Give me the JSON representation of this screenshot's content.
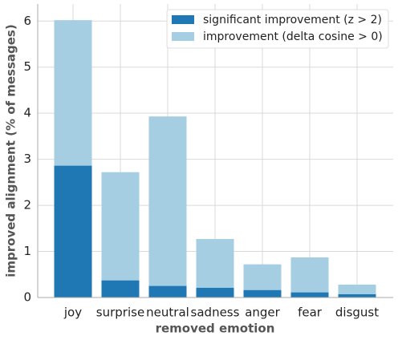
{
  "chart_data": {
    "type": "bar",
    "xlabel": "removed emotion",
    "ylabel": "improved alignment (% of messages)",
    "categories": [
      "joy",
      "surprise",
      "neutral",
      "sadness",
      "anger",
      "fear",
      "disgust"
    ],
    "series": [
      {
        "name": "significant improvement (z > 2)",
        "color": "#1f78b4",
        "values": [
          2.86,
          0.37,
          0.25,
          0.21,
          0.16,
          0.11,
          0.07
        ]
      },
      {
        "name": "improvement (delta cosine > 0)",
        "color": "#a6cee3",
        "values": [
          6.02,
          2.72,
          3.93,
          1.27,
          0.72,
          0.87,
          0.28
        ]
      }
    ],
    "ylim": [
      0,
      6.37
    ],
    "yticks": [
      0,
      1,
      2,
      3,
      4,
      5,
      6
    ],
    "grid": true,
    "legend": "upper right"
  }
}
